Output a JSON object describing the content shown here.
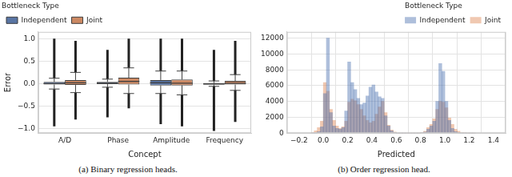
{
  "chart_data": [
    {
      "type": "box",
      "caption": "(a) Binary regression heads.",
      "x_label": "Concept",
      "y_label": "Error",
      "categories": [
        "A/D",
        "Phase",
        "Amplitude",
        "Frequency"
      ],
      "ylim": [
        -1.1,
        1.15
      ],
      "yticks": [
        {
          "value": -1,
          "label": "−1.0"
        },
        {
          "value": -0.5,
          "label": "−0.5"
        },
        {
          "value": 0,
          "label": "0.0"
        },
        0.5,
        {
          "value": 1,
          "label": "1.0"
        }
      ],
      "grid": true,
      "legend": "upper left",
      "legend_title": "Bottleneck Type",
      "series": [
        {
          "name": "Independent",
          "color": "#5975a4",
          "q1": [
            -0.02,
            -0.01,
            -0.04,
            -0.02
          ],
          "median": [
            0.0,
            0.01,
            0.02,
            -0.01
          ],
          "q3": [
            0.04,
            0.04,
            0.08,
            0.01
          ],
          "whisker_low": [
            -0.12,
            -0.08,
            -0.22,
            -0.06
          ],
          "whisker_high": [
            0.12,
            0.1,
            0.28,
            0.06
          ],
          "outlier_low": [
            -0.95,
            -0.75,
            -0.9,
            -1.05
          ],
          "outlier_high": [
            1.0,
            0.75,
            1.0,
            0.75
          ]
        },
        {
          "name": "Joint",
          "color": "#cc8963",
          "q1": [
            -0.03,
            -0.02,
            -0.04,
            -0.02
          ],
          "median": [
            0.02,
            0.05,
            0.01,
            0.01
          ],
          "q3": [
            0.08,
            0.13,
            0.09,
            0.06
          ],
          "whisker_low": [
            -0.2,
            -0.22,
            -0.25,
            -0.15
          ],
          "whisker_high": [
            0.25,
            0.35,
            0.28,
            0.2
          ],
          "outlier_low": [
            -0.8,
            -0.55,
            -0.95,
            -0.85
          ],
          "outlier_high": [
            0.95,
            1.0,
            1.0,
            0.95
          ]
        }
      ]
    },
    {
      "type": "histogram",
      "caption": "(b) Order regression head.",
      "x_label": "Predicted",
      "xlim": [
        -0.3,
        1.5
      ],
      "xticks": [
        {
          "value": -0.2,
          "label": "−0.2"
        },
        {
          "value": 0,
          "label": "0.0"
        },
        0.2,
        0.4,
        0.6,
        0.8,
        {
          "value": 1,
          "label": "1.0"
        },
        1.2,
        1.4
      ],
      "ylim": [
        0,
        12800
      ],
      "yticks": [
        0,
        2000,
        4000,
        6000,
        8000,
        10000,
        12000
      ],
      "grid": true,
      "legend": "upper right",
      "legend_title": "Bottleneck Type",
      "bins": [
        -0.1,
        -0.075,
        -0.05,
        -0.025,
        0,
        0.025,
        0.05,
        0.075,
        0.1,
        0.125,
        0.15,
        0.175,
        0.2,
        0.225,
        0.25,
        0.275,
        0.3,
        0.325,
        0.35,
        0.375,
        0.4,
        0.425,
        0.45,
        0.475,
        0.5,
        0.525,
        0.55,
        0.575,
        0.6,
        0.625,
        0.65,
        0.675,
        0.7,
        0.725,
        0.75,
        0.775,
        0.8,
        0.825,
        0.85,
        0.875,
        0.9,
        0.925,
        0.95,
        0.975,
        1,
        1.025,
        1.05,
        1.075,
        1.1,
        1.125,
        1.15,
        1.175,
        1.2,
        1.225,
        1.25
      ],
      "series": [
        {
          "name": "Independent",
          "color": "#4c72b0",
          "values": [
            0,
            0,
            200,
            800,
            5000,
            12000,
            2600,
            900,
            600,
            500,
            700,
            2800,
            9000,
            6400,
            5500,
            4400,
            3600,
            3800,
            4700,
            5800,
            6100,
            5200,
            4600,
            4400,
            2200,
            900,
            300,
            100,
            0,
            0,
            0,
            0,
            0,
            0,
            0,
            0,
            50,
            150,
            500,
            900,
            1500,
            4000,
            8800,
            7800,
            4000,
            1600,
            600,
            200,
            50,
            0,
            0,
            0,
            0,
            0
          ]
        },
        {
          "name": "Joint",
          "color": "#dd8452",
          "values": [
            100,
            300,
            700,
            1500,
            6400,
            5300,
            3000,
            1600,
            900,
            600,
            800,
            1500,
            3900,
            4300,
            4100,
            3600,
            3000,
            2200,
            1600,
            1300,
            1500,
            2400,
            3300,
            4000,
            2600,
            1000,
            400,
            150,
            0,
            0,
            0,
            0,
            0,
            0,
            0,
            0,
            100,
            250,
            700,
            1100,
            1800,
            3000,
            4000,
            3900,
            3200,
            1900,
            1100,
            500,
            250,
            100,
            50,
            0,
            0,
            0
          ]
        }
      ]
    }
  ]
}
